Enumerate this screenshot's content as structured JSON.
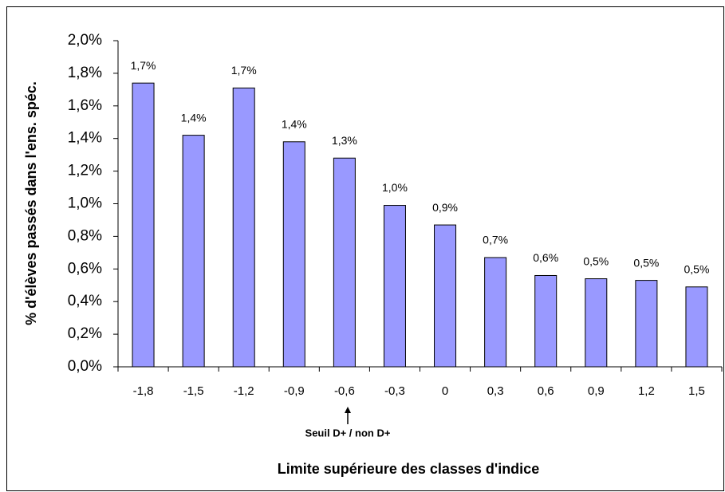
{
  "chart_data": {
    "type": "bar",
    "x_label": "Limite supérieure des classes d'indice",
    "y_label": "% d'élèves passés dans l'ens. spéc.",
    "annotation": "Seuil D+ / non D+",
    "categories": [
      "-1,8",
      "-1,5",
      "-1,2",
      "-0,9",
      "-0,6",
      "-0,3",
      "0",
      "0,3",
      "0,6",
      "0,9",
      "1,2",
      "1,5"
    ],
    "values": [
      1.74,
      1.42,
      1.71,
      1.38,
      1.28,
      0.99,
      0.87,
      0.67,
      0.56,
      0.54,
      0.53,
      0.49
    ],
    "value_labels": [
      "1,7%",
      "1,4%",
      "1,7%",
      "1,4%",
      "1,3%",
      "1,0%",
      "0,9%",
      "0,7%",
      "0,6%",
      "0,5%",
      "0,5%",
      "0,5%"
    ],
    "color": "#9999ff",
    "ylim": [
      0,
      2
    ],
    "yticks": [
      {
        "value": 0,
        "label": "0,0%"
      },
      {
        "value": 0.2,
        "label": "0,2%"
      },
      {
        "value": 0.4,
        "label": "0,4%"
      },
      {
        "value": 0.6,
        "label": "0,6%"
      },
      {
        "value": 0.8,
        "label": "0,8%"
      },
      {
        "value": 1.0,
        "label": "1,0%"
      },
      {
        "value": 1.2,
        "label": "1,2%"
      },
      {
        "value": 1.4,
        "label": "1,4%"
      },
      {
        "value": 1.6,
        "label": "1,6%"
      },
      {
        "value": 1.8,
        "label": "1,8%"
      },
      {
        "value": 2.0,
        "label": "2,0%"
      }
    ],
    "grid": false
  }
}
